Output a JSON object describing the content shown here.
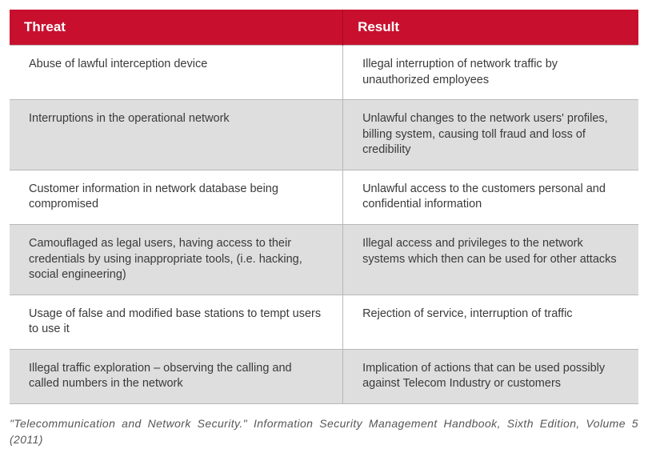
{
  "table": {
    "header_bg": "#c8102e",
    "header_color": "#ffffff",
    "row_bg_odd": "#ffffff",
    "row_bg_even": "#dedede",
    "border_color": "#b8b8b8",
    "text_color": "#3a3a3a",
    "header_fontsize": 17,
    "body_fontsize": 14.5,
    "columns": [
      {
        "label": "Threat",
        "width": "53%"
      },
      {
        "label": "Result",
        "width": "47%"
      }
    ],
    "rows": [
      {
        "threat": "Abuse of lawful interception device",
        "result": "Illegal interruption of network traffic by unauthorized employees"
      },
      {
        "threat": "Interruptions in the operational network",
        "result": "Unlawful changes to the network users' profiles, billing system, causing toll fraud and loss of credibility"
      },
      {
        "threat": "Customer information in network database being compromised",
        "result": "Unlawful access to the customers personal and confidential information"
      },
      {
        "threat": "Camouflaged as legal users, having access to their credentials by using inappropriate tools, (i.e. hacking, social engineering)",
        "result": "Illegal access and privileges to the network systems which then can be used for other attacks"
      },
      {
        "threat": "Usage of false and modified base stations to tempt users to use it",
        "result": "Rejection of service, interruption of traffic"
      },
      {
        "threat": "Illegal traffic exploration – observing the calling and called numbers in the network",
        "result": "Implication of actions that can be used possibly against Telecom Industry or customers"
      }
    ]
  },
  "citation": "\"Telecommunication and Network Security.\" Information Security Management Handbook, Sixth Edition, Volume 5 (2011)"
}
